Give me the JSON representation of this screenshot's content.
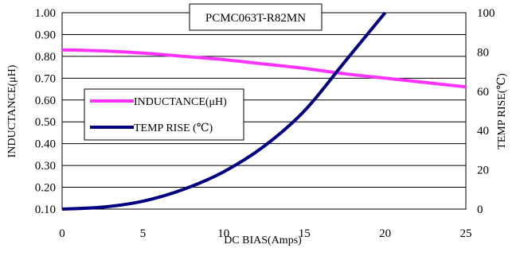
{
  "chart_data": {
    "type": "line",
    "title": "PCMC063T-R82MN",
    "xlabel": "DC BIAS(Amps)",
    "ylabel_left": "INDUCTANCE(μH)",
    "ylabel_right": "TEMP RISE(℃)",
    "xlim": [
      0,
      25
    ],
    "ylim_left": [
      0.1,
      1.0
    ],
    "ylim_right": [
      0,
      100
    ],
    "x_ticks": [
      "0",
      "5",
      "10",
      "15",
      "20",
      "25"
    ],
    "y_left_ticks": [
      "0.10",
      "0.20",
      "0.30",
      "0.40",
      "0.50",
      "0.60",
      "0.70",
      "0.80",
      "0.90",
      "1.00"
    ],
    "y_right_ticks": [
      "0",
      "20",
      "40",
      "60",
      "80",
      "100"
    ],
    "grid": "horizontal",
    "legend_position": "left-middle",
    "series": [
      {
        "name": "INDUCTANCE(μH)",
        "axis": "left",
        "color": "#ff33ff",
        "x": [
          0,
          2.5,
          5,
          7.5,
          10,
          12.5,
          15,
          17.5,
          20,
          22.5,
          25
        ],
        "y": [
          0.83,
          0.825,
          0.815,
          0.8,
          0.785,
          0.765,
          0.745,
          0.72,
          0.7,
          0.68,
          0.66
        ]
      },
      {
        "name": "TEMP RISE (℃)",
        "axis": "right",
        "color": "#000080",
        "x": [
          0,
          2.5,
          5,
          7.5,
          10,
          12.5,
          15,
          17.5,
          20
        ],
        "y": [
          0,
          1,
          4,
          10,
          19,
          32,
          50,
          75,
          100
        ]
      }
    ]
  }
}
